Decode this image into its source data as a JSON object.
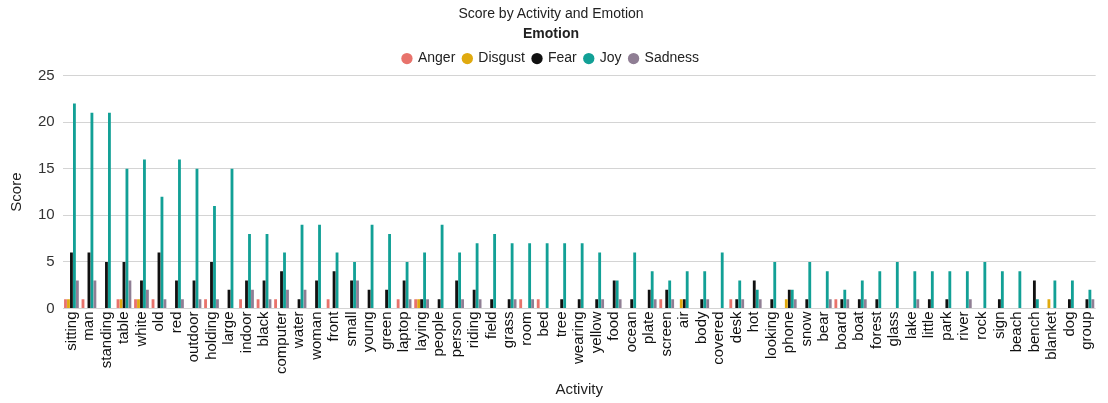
{
  "chart_data": {
    "type": "bar",
    "title": "Score by Activity and Emotion",
    "xlabel": "Activity",
    "ylabel": "Score",
    "legend_title": "Emotion",
    "legend": "top",
    "grid": "y",
    "categories": [
      "sitting",
      "man",
      "standing",
      "table",
      "white",
      "old",
      "red",
      "outdoor",
      "holding",
      "large",
      "indoor",
      "black",
      "computer",
      "water",
      "woman",
      "front",
      "small",
      "young",
      "green",
      "laptop",
      "laying",
      "people",
      "person",
      "riding",
      "field",
      "grass",
      "room",
      "bed",
      "tree",
      "wearing",
      "yellow",
      "food",
      "ocean",
      "plate",
      "screen",
      "air",
      "body",
      "covered",
      "desk",
      "hot",
      "looking",
      "phone",
      "snow",
      "bear",
      "board",
      "boat",
      "forest",
      "glass",
      "lake",
      "little",
      "park",
      "river",
      "rock",
      "sign",
      "beach",
      "bench",
      "blanket",
      "dog",
      "group"
    ],
    "ylim": [
      0,
      25
    ],
    "yticks": [
      0,
      5,
      10,
      15,
      20,
      25
    ],
    "series": [
      {
        "name": "Anger",
        "color": "#e8736c",
        "values": [
          1,
          1,
          0,
          1,
          1,
          1,
          0,
          0,
          1,
          0,
          1,
          1,
          1,
          0,
          0,
          1,
          0,
          0,
          0,
          1,
          1,
          0,
          0,
          0,
          0,
          0,
          1,
          1,
          0,
          0,
          0,
          0,
          0,
          0,
          1,
          0,
          0,
          0,
          1,
          0,
          0,
          0,
          0,
          0,
          1,
          0,
          0,
          0,
          0,
          0,
          0,
          0,
          0,
          0,
          0,
          0,
          0,
          0,
          0
        ]
      },
      {
        "name": "Disgust",
        "color": "#e0aa0f",
        "values": [
          1,
          0,
          0,
          1,
          1,
          0,
          0,
          0,
          0,
          0,
          0,
          0,
          0,
          0,
          0,
          0,
          0,
          0,
          0,
          0,
          1,
          0,
          0,
          0,
          0,
          0,
          0,
          0,
          0,
          0,
          0,
          0,
          0,
          0,
          0,
          1,
          0,
          0,
          0,
          0,
          0,
          1,
          0,
          0,
          0,
          0,
          0,
          0,
          0,
          0,
          0,
          0,
          0,
          0,
          0,
          0,
          1,
          0,
          0
        ]
      },
      {
        "name": "Fear",
        "color": "#111111",
        "values": [
          6,
          6,
          5,
          5,
          3,
          6,
          3,
          3,
          5,
          2,
          3,
          3,
          4,
          1,
          3,
          4,
          3,
          2,
          2,
          3,
          1,
          1,
          3,
          2,
          1,
          1,
          0,
          0,
          1,
          1,
          1,
          3,
          1,
          2,
          2,
          1,
          1,
          0,
          1,
          3,
          1,
          2,
          1,
          0,
          1,
          1,
          1,
          0,
          0,
          1,
          1,
          0,
          0,
          1,
          0,
          3,
          0,
          1,
          1
        ]
      },
      {
        "name": "Joy",
        "color": "#12a096",
        "values": [
          22,
          21,
          21,
          15,
          16,
          12,
          16,
          15,
          11,
          15,
          8,
          8,
          6,
          9,
          9,
          6,
          5,
          9,
          8,
          5,
          6,
          9,
          6,
          7,
          8,
          7,
          7,
          7,
          7,
          7,
          6,
          3,
          6,
          4,
          3,
          4,
          4,
          6,
          3,
          2,
          5,
          2,
          5,
          4,
          2,
          3,
          4,
          5,
          4,
          4,
          4,
          4,
          5,
          4,
          4,
          1,
          3,
          3,
          2
        ]
      },
      {
        "name": "Sadness",
        "color": "#8f7e94",
        "values": [
          3,
          3,
          0,
          3,
          2,
          1,
          1,
          1,
          1,
          0,
          2,
          1,
          2,
          2,
          0,
          0,
          3,
          0,
          0,
          1,
          1,
          0,
          1,
          1,
          0,
          1,
          1,
          0,
          0,
          0,
          1,
          1,
          0,
          1,
          1,
          0,
          1,
          0,
          1,
          1,
          0,
          1,
          0,
          1,
          1,
          1,
          0,
          0,
          1,
          0,
          0,
          1,
          0,
          0,
          0,
          0,
          0,
          0,
          1
        ]
      }
    ]
  }
}
